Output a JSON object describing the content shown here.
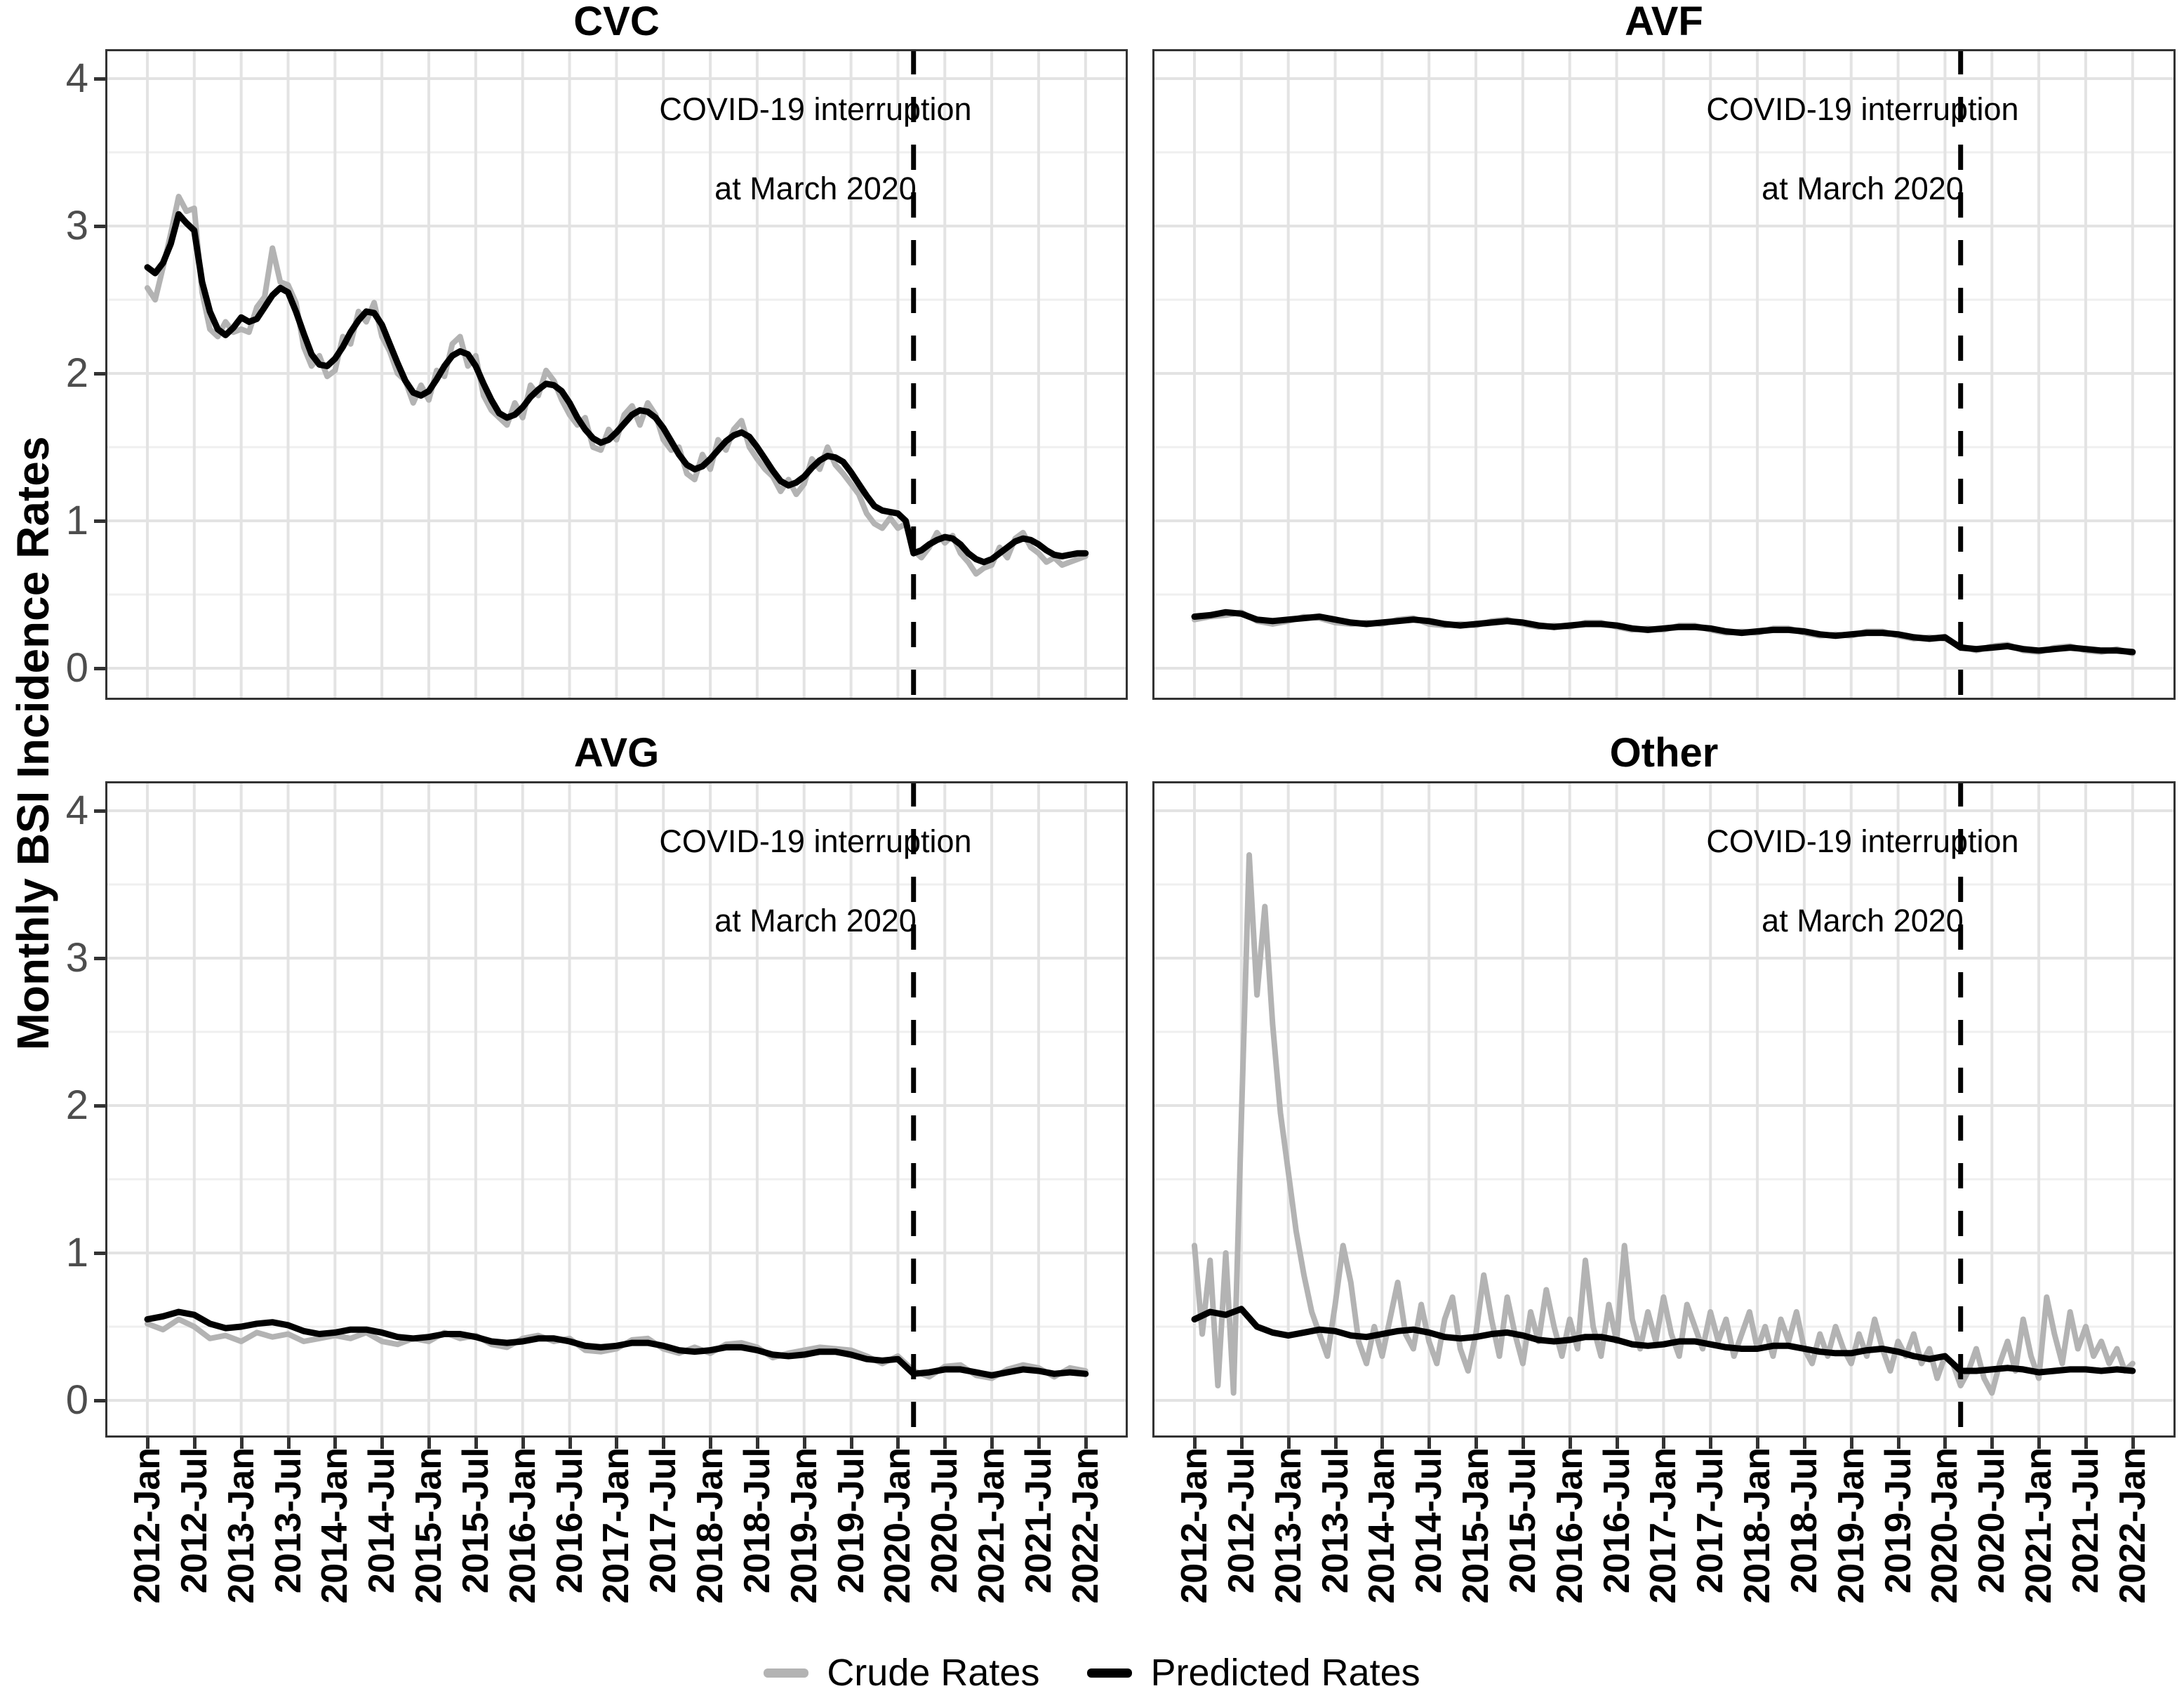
{
  "y_axis_title": "Monthly BSI Incidence Rates",
  "annotation": {
    "line1": "COVID-19 interruption",
    "line2": "at March 2020"
  },
  "legend": [
    {
      "label": "Crude Rates",
      "color": "#b3b3b3"
    },
    {
      "label": "Predicted Rates",
      "color": "#000000"
    }
  ],
  "y_tick_labels": [
    "4",
    "3",
    "2",
    "1",
    "0"
  ],
  "x_tick_labels": [
    "2012-Jan",
    "2012-Jul",
    "2013-Jan",
    "2013-Jul",
    "2014-Jan",
    "2014-Jul",
    "2015-Jan",
    "2015-Jul",
    "2016-Jan",
    "2016-Jul",
    "2017-Jan",
    "2017-Jul",
    "2018-Jan",
    "2018-Jul",
    "2019-Jan",
    "2019-Jul",
    "2020-Jan",
    "2020-Jul",
    "2021-Jan",
    "2021-Jul",
    "2022-Jan"
  ],
  "colors": {
    "crude": "#b3b3b3",
    "predicted": "#000000",
    "grid_major": "#e3e3e3",
    "grid_minor": "#efefef",
    "panel_border": "#333333",
    "tick_text": "#4d4d4d",
    "interruption_line": "#000000"
  },
  "chart_data": [
    {
      "type": "line",
      "title": "CVC",
      "ylim": [
        0,
        4
      ],
      "y_ticks": [
        0,
        1,
        2,
        3,
        4
      ],
      "x": {
        "start": "2012-Jan",
        "end": "2022-Jan",
        "step": "monthly"
      },
      "vline": {
        "date": "2020-Mar",
        "month_index": 98
      },
      "annotation": [
        "COVID-19 interruption",
        "at March 2020"
      ],
      "series": [
        {
          "name": "Crude Rates",
          "color": "#b3b3b3",
          "values": [
            2.58,
            2.5,
            2.72,
            2.95,
            3.2,
            3.1,
            3.12,
            2.55,
            2.3,
            2.25,
            2.35,
            2.28,
            2.3,
            2.28,
            2.45,
            2.52,
            2.85,
            2.62,
            2.6,
            2.48,
            2.18,
            2.05,
            2.12,
            1.98,
            2.02,
            2.25,
            2.2,
            2.42,
            2.35,
            2.48,
            2.25,
            2.15,
            2.0,
            1.95,
            1.8,
            1.92,
            1.82,
            2.02,
            1.98,
            2.2,
            2.25,
            2.05,
            2.12,
            1.85,
            1.75,
            1.7,
            1.65,
            1.8,
            1.7,
            1.92,
            1.85,
            2.02,
            1.95,
            1.82,
            1.72,
            1.65,
            1.7,
            1.5,
            1.48,
            1.62,
            1.55,
            1.72,
            1.78,
            1.65,
            1.8,
            1.72,
            1.55,
            1.48,
            1.5,
            1.32,
            1.28,
            1.45,
            1.35,
            1.55,
            1.48,
            1.62,
            1.68,
            1.5,
            1.42,
            1.35,
            1.3,
            1.2,
            1.28,
            1.18,
            1.25,
            1.42,
            1.35,
            1.5,
            1.38,
            1.32,
            1.25,
            1.18,
            1.05,
            0.98,
            0.95,
            1.02,
            0.95,
            0.98,
            0.8,
            0.75,
            0.82,
            0.92,
            0.85,
            0.9,
            0.78,
            0.72,
            0.64,
            0.68,
            0.7,
            0.82,
            0.75,
            0.88,
            0.92,
            0.82,
            0.78,
            0.72,
            0.75,
            0.7,
            0.72,
            0.74,
            0.76
          ]
        },
        {
          "name": "Predicted Rates",
          "color": "#000000",
          "values": [
            2.72,
            2.68,
            2.75,
            2.88,
            3.08,
            3.02,
            2.97,
            2.62,
            2.42,
            2.3,
            2.26,
            2.31,
            2.38,
            2.35,
            2.37,
            2.45,
            2.53,
            2.58,
            2.55,
            2.42,
            2.27,
            2.13,
            2.06,
            2.05,
            2.1,
            2.18,
            2.28,
            2.36,
            2.42,
            2.41,
            2.33,
            2.2,
            2.07,
            1.95,
            1.87,
            1.85,
            1.88,
            1.96,
            2.05,
            2.12,
            2.15,
            2.13,
            2.05,
            1.93,
            1.82,
            1.73,
            1.7,
            1.72,
            1.77,
            1.84,
            1.89,
            1.93,
            1.92,
            1.88,
            1.8,
            1.7,
            1.62,
            1.56,
            1.53,
            1.55,
            1.6,
            1.66,
            1.72,
            1.75,
            1.74,
            1.7,
            1.63,
            1.54,
            1.45,
            1.38,
            1.35,
            1.37,
            1.42,
            1.48,
            1.54,
            1.58,
            1.6,
            1.57,
            1.5,
            1.42,
            1.34,
            1.27,
            1.24,
            1.26,
            1.3,
            1.36,
            1.41,
            1.44,
            1.43,
            1.4,
            1.33,
            1.25,
            1.17,
            1.1,
            1.07,
            1.06,
            1.05,
            1.0,
            0.78,
            0.8,
            0.84,
            0.87,
            0.89,
            0.88,
            0.84,
            0.78,
            0.74,
            0.72,
            0.74,
            0.78,
            0.82,
            0.86,
            0.88,
            0.87,
            0.84,
            0.8,
            0.77,
            0.76,
            0.77,
            0.78,
            0.78
          ]
        }
      ]
    },
    {
      "type": "line",
      "title": "AVF",
      "ylim": [
        0,
        4
      ],
      "y_ticks": [
        0,
        1,
        2,
        3,
        4
      ],
      "x": {
        "start": "2012-Jan",
        "end": "2022-Jan",
        "step": "bimonthly"
      },
      "vline": {
        "date": "2020-Mar",
        "month_index": 98
      },
      "annotation": [
        "COVID-19 interruption",
        "at March 2020"
      ],
      "series": [
        {
          "name": "Crude Rates",
          "color": "#b3b3b3",
          "values": [
            0.33,
            0.35,
            0.36,
            0.38,
            0.32,
            0.3,
            0.32,
            0.35,
            0.34,
            0.31,
            0.3,
            0.31,
            0.3,
            0.33,
            0.34,
            0.3,
            0.29,
            0.3,
            0.29,
            0.32,
            0.33,
            0.3,
            0.28,
            0.29,
            0.28,
            0.31,
            0.31,
            0.28,
            0.26,
            0.27,
            0.26,
            0.29,
            0.29,
            0.26,
            0.24,
            0.25,
            0.24,
            0.27,
            0.27,
            0.24,
            0.22,
            0.23,
            0.22,
            0.25,
            0.25,
            0.22,
            0.2,
            0.21,
            0.2,
            0.15,
            0.12,
            0.15,
            0.16,
            0.12,
            0.11,
            0.14,
            0.15,
            0.12,
            0.11,
            0.13,
            0.1
          ]
        },
        {
          "name": "Predicted Rates",
          "color": "#000000",
          "values": [
            0.35,
            0.36,
            0.38,
            0.37,
            0.33,
            0.32,
            0.33,
            0.34,
            0.35,
            0.33,
            0.31,
            0.3,
            0.31,
            0.32,
            0.33,
            0.32,
            0.3,
            0.29,
            0.3,
            0.31,
            0.32,
            0.31,
            0.29,
            0.28,
            0.29,
            0.3,
            0.3,
            0.29,
            0.27,
            0.26,
            0.27,
            0.28,
            0.28,
            0.27,
            0.25,
            0.24,
            0.25,
            0.26,
            0.26,
            0.25,
            0.23,
            0.22,
            0.23,
            0.24,
            0.24,
            0.23,
            0.21,
            0.2,
            0.21,
            0.14,
            0.13,
            0.14,
            0.15,
            0.13,
            0.12,
            0.13,
            0.14,
            0.13,
            0.12,
            0.12,
            0.11
          ]
        }
      ]
    },
    {
      "type": "line",
      "title": "AVG",
      "ylim": [
        0,
        4
      ],
      "y_ticks": [
        0,
        1,
        2,
        3,
        4
      ],
      "x": {
        "start": "2012-Jan",
        "end": "2022-Jan",
        "step": "bimonthly"
      },
      "vline": {
        "date": "2020-Mar",
        "month_index": 98
      },
      "annotation": [
        "COVID-19 interruption",
        "at March 2020"
      ],
      "series": [
        {
          "name": "Crude Rates",
          "color": "#b3b3b3",
          "values": [
            0.52,
            0.48,
            0.55,
            0.5,
            0.42,
            0.44,
            0.4,
            0.46,
            0.43,
            0.45,
            0.4,
            0.42,
            0.44,
            0.42,
            0.46,
            0.4,
            0.38,
            0.42,
            0.4,
            0.46,
            0.42,
            0.44,
            0.38,
            0.36,
            0.42,
            0.44,
            0.4,
            0.42,
            0.34,
            0.33,
            0.35,
            0.41,
            0.42,
            0.35,
            0.32,
            0.36,
            0.32,
            0.38,
            0.39,
            0.36,
            0.29,
            0.32,
            0.34,
            0.36,
            0.35,
            0.34,
            0.3,
            0.25,
            0.3,
            0.2,
            0.16,
            0.23,
            0.24,
            0.17,
            0.15,
            0.21,
            0.24,
            0.22,
            0.16,
            0.22,
            0.2
          ]
        },
        {
          "name": "Predicted Rates",
          "color": "#000000",
          "values": [
            0.55,
            0.57,
            0.6,
            0.58,
            0.52,
            0.49,
            0.5,
            0.52,
            0.53,
            0.51,
            0.47,
            0.45,
            0.46,
            0.48,
            0.48,
            0.46,
            0.43,
            0.42,
            0.43,
            0.45,
            0.45,
            0.43,
            0.4,
            0.39,
            0.4,
            0.42,
            0.42,
            0.4,
            0.37,
            0.36,
            0.37,
            0.39,
            0.39,
            0.37,
            0.34,
            0.33,
            0.34,
            0.36,
            0.36,
            0.34,
            0.31,
            0.3,
            0.31,
            0.33,
            0.33,
            0.31,
            0.28,
            0.27,
            0.28,
            0.18,
            0.19,
            0.21,
            0.21,
            0.19,
            0.17,
            0.19,
            0.21,
            0.2,
            0.18,
            0.19,
            0.18
          ]
        }
      ]
    },
    {
      "type": "line",
      "title": "Other",
      "ylim": [
        0,
        4
      ],
      "y_ticks": [
        0,
        1,
        2,
        3,
        4
      ],
      "x": {
        "start": "2012-Jan",
        "end": "2022-Jan",
        "step": "monthly"
      },
      "vline": {
        "date": "2020-Mar",
        "month_index": 98
      },
      "annotation": [
        "COVID-19 interruption",
        "at March 2020"
      ],
      "series": [
        {
          "name": "Crude Rates",
          "color": "#b3b3b3",
          "values": [
            1.05,
            0.45,
            0.95,
            0.1,
            1.0,
            0.05,
            1.9,
            3.7,
            2.75,
            3.35,
            2.55,
            1.95,
            1.55,
            1.15,
            0.85,
            0.6,
            0.45,
            0.3,
            0.65,
            1.05,
            0.8,
            0.4,
            0.25,
            0.5,
            0.3,
            0.55,
            0.8,
            0.45,
            0.35,
            0.65,
            0.4,
            0.25,
            0.55,
            0.7,
            0.35,
            0.2,
            0.45,
            0.85,
            0.55,
            0.3,
            0.7,
            0.45,
            0.25,
            0.6,
            0.4,
            0.75,
            0.5,
            0.3,
            0.55,
            0.35,
            0.95,
            0.5,
            0.3,
            0.65,
            0.4,
            1.05,
            0.55,
            0.35,
            0.6,
            0.4,
            0.7,
            0.45,
            0.3,
            0.65,
            0.5,
            0.35,
            0.6,
            0.4,
            0.55,
            0.3,
            0.45,
            0.6,
            0.35,
            0.5,
            0.3,
            0.55,
            0.4,
            0.6,
            0.35,
            0.25,
            0.45,
            0.3,
            0.5,
            0.35,
            0.25,
            0.45,
            0.3,
            0.55,
            0.35,
            0.2,
            0.4,
            0.3,
            0.45,
            0.25,
            0.35,
            0.15,
            0.3,
            0.25,
            0.1,
            0.2,
            0.35,
            0.15,
            0.05,
            0.25,
            0.4,
            0.2,
            0.55,
            0.3,
            0.15,
            0.7,
            0.45,
            0.25,
            0.6,
            0.35,
            0.5,
            0.3,
            0.4,
            0.25,
            0.35,
            0.2,
            0.25
          ]
        },
        {
          "name": "Predicted Rates",
          "color": "#000000",
          "values": [
            0.55,
            0.6,
            0.58,
            0.62,
            0.5,
            0.46,
            0.44,
            0.46,
            0.48,
            0.47,
            0.44,
            0.43,
            0.45,
            0.47,
            0.48,
            0.46,
            0.43,
            0.42,
            0.43,
            0.45,
            0.46,
            0.44,
            0.41,
            0.4,
            0.41,
            0.43,
            0.43,
            0.41,
            0.38,
            0.37,
            0.38,
            0.4,
            0.4,
            0.38,
            0.36,
            0.35,
            0.35,
            0.37,
            0.37,
            0.35,
            0.33,
            0.32,
            0.32,
            0.34,
            0.35,
            0.33,
            0.3,
            0.28,
            0.3,
            0.2,
            0.2,
            0.21,
            0.22,
            0.21,
            0.19,
            0.2,
            0.21,
            0.21,
            0.2,
            0.21,
            0.2
          ]
        }
      ]
    }
  ]
}
